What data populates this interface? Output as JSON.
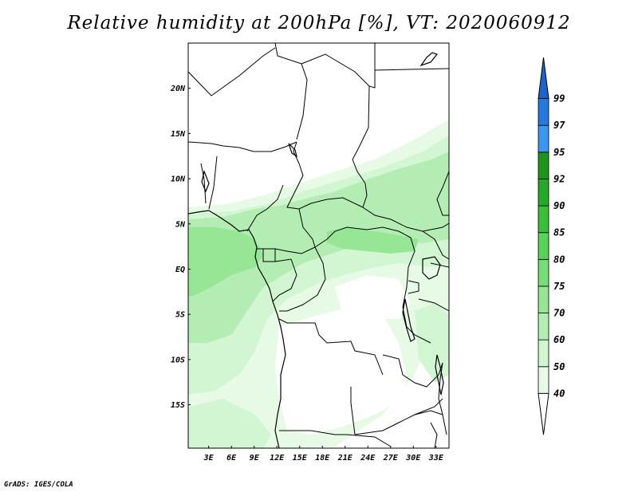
{
  "title": "Relative humidity at 200hPa [%], VT: 2020060912",
  "credit": "GrADS: IGES/COLA",
  "map": {
    "lat_labels": [
      "20N",
      "15N",
      "10N",
      "5N",
      "EQ",
      "5S",
      "10S",
      "15S"
    ],
    "lat_values": [
      20,
      15,
      10,
      5,
      0,
      -5,
      -10,
      -15
    ],
    "lon_labels": [
      "3E",
      "6E",
      "9E",
      "12E",
      "15E",
      "18E",
      "21E",
      "24E",
      "27E",
      "30E",
      "33E"
    ],
    "lon_values": [
      3,
      6,
      9,
      12,
      15,
      18,
      21,
      24,
      27,
      30,
      33
    ],
    "lon_range": [
      0.3,
      34.7
    ],
    "lat_range": [
      -19.8,
      25.0
    ]
  },
  "colorbar": {
    "levels": [
      "40",
      "50",
      "60",
      "70",
      "75",
      "80",
      "85",
      "90",
      "92",
      "95",
      "97",
      "99"
    ],
    "colors": [
      "#ffffff",
      "#e6fae6",
      "#d2f5d2",
      "#b4edb4",
      "#96e696",
      "#78dc78",
      "#5ad25a",
      "#3cbe3c",
      "#28a828",
      "#1e941e",
      "#3c96f0",
      "#2878dc",
      "#1e64c8"
    ]
  }
}
